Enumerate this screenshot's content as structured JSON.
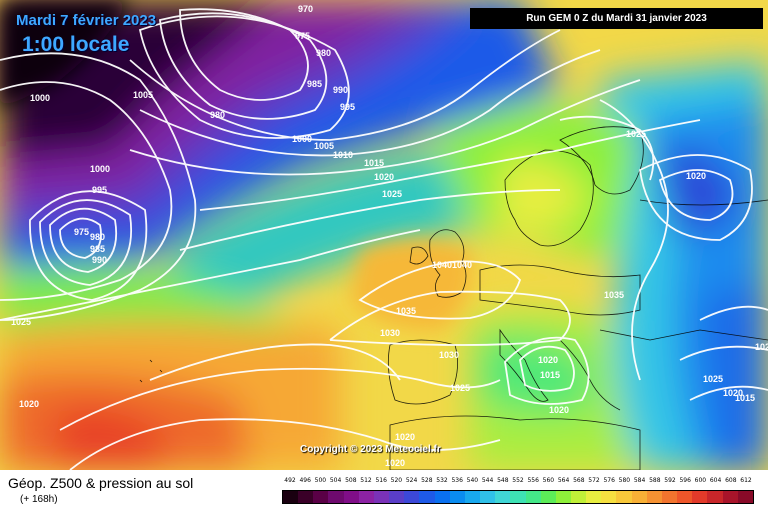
{
  "header": {
    "date_title": "Mardi 7 février 2023",
    "time_title": "1:00 locale",
    "run_info": "Run GEM 0 Z du Mardi 31 janvier 2023"
  },
  "copyright": "Copyright © 2023 Meteociel.fr",
  "legend": {
    "title": "Géop. Z500 & pression au sol",
    "subtitle": "(+ 168h)",
    "scale_values": [
      "492",
      "496",
      "500",
      "504",
      "508",
      "512",
      "516",
      "520",
      "524",
      "528",
      "532",
      "536",
      "540",
      "544",
      "548",
      "552",
      "556",
      "560",
      "564",
      "568",
      "572",
      "576",
      "580",
      "584",
      "588",
      "592",
      "596",
      "600",
      "604",
      "608",
      "612"
    ],
    "scale_colors": [
      "#1a0010",
      "#3a0028",
      "#5a0046",
      "#6e0a6e",
      "#800e88",
      "#8c22a4",
      "#7a32b8",
      "#5a3ec8",
      "#3c48d8",
      "#1e5ae8",
      "#0a70f0",
      "#0a8cf0",
      "#18a8ee",
      "#30c0e8",
      "#40d6d6",
      "#3ee2b4",
      "#44e888",
      "#5cec58",
      "#8ef03a",
      "#c0f038",
      "#e8ee40",
      "#f6e040",
      "#f8c83a",
      "#f8b036",
      "#f69232",
      "#f2742e",
      "#ee562a",
      "#e23a2a",
      "#c8262a",
      "#a8142a",
      "#880a28"
    ]
  },
  "map": {
    "isobar_labels": [
      "970",
      "975",
      "980",
      "985",
      "990",
      "995",
      "1000",
      "1005",
      "980",
      "1000",
      "1005",
      "1010",
      "1015",
      "1020",
      "1025",
      "1000",
      "995",
      "975",
      "980",
      "985",
      "990",
      "1025",
      "1020",
      "1040",
      "1040",
      "1035",
      "1030",
      "1030",
      "1025",
      "1035",
      "1020",
      "1015",
      "1020",
      "1025",
      "1020",
      "1020",
      "1020",
      "1025",
      "1015",
      "1020",
      "1020"
    ]
  }
}
